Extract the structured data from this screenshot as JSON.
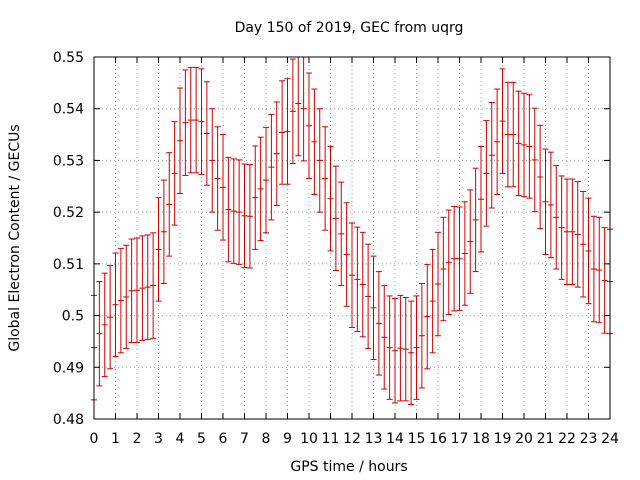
{
  "chart_data": {
    "type": "errorbar",
    "title": "Day 150 of 2019, GEC from uqrg",
    "xlabel": "GPS time / hours",
    "ylabel": "Global Electron Content / GECUs",
    "xlim": [
      0,
      24
    ],
    "ylim": [
      0.48,
      0.55
    ],
    "grid": true,
    "x_ticks": [
      0,
      1,
      2,
      3,
      4,
      5,
      6,
      7,
      8,
      9,
      10,
      11,
      12,
      13,
      14,
      15,
      16,
      17,
      18,
      19,
      20,
      21,
      22,
      23,
      24
    ],
    "x_tick_labels": [
      "0",
      "1",
      "2",
      "3",
      "4",
      "5",
      "6",
      "7",
      "8",
      "9",
      "10",
      "11",
      "12",
      "13",
      "14",
      "15",
      "16",
      "17",
      "18",
      "19",
      "20",
      "21",
      "22",
      "23",
      "24"
    ],
    "y_ticks": [
      0.48,
      0.49,
      0.5,
      0.51,
      0.52,
      0.53,
      0.54,
      0.55
    ],
    "y_tick_labels": [
      "0.48",
      "0.49",
      "0.5",
      "0.51",
      "0.52",
      "0.53",
      "0.54",
      "0.55"
    ],
    "series": [
      {
        "name": "GEC",
        "color": "#cc0000",
        "x": [
          0,
          0.25,
          0.5,
          0.75,
          1,
          1.25,
          1.5,
          1.75,
          2,
          2.25,
          2.5,
          2.75,
          3,
          3.25,
          3.5,
          3.75,
          4,
          4.25,
          4.5,
          4.75,
          5,
          5.25,
          5.5,
          5.75,
          6,
          6.25,
          6.5,
          6.75,
          7,
          7.25,
          7.5,
          7.75,
          8,
          8.25,
          8.5,
          8.75,
          9,
          9.25,
          9.5,
          9.75,
          10,
          10.25,
          10.5,
          10.75,
          11,
          11.25,
          11.5,
          11.75,
          12,
          12.25,
          12.5,
          12.75,
          13,
          13.25,
          13.5,
          13.75,
          14,
          14.25,
          14.5,
          14.75,
          15,
          15.25,
          15.5,
          15.75,
          16,
          16.25,
          16.5,
          16.75,
          17,
          17.25,
          17.5,
          17.75,
          18,
          18.25,
          18.5,
          18.75,
          19,
          19.25,
          19.5,
          19.75,
          20,
          20.25,
          20.5,
          20.75,
          21,
          21.25,
          21.5,
          21.75,
          22,
          22.25,
          22.5,
          22.75,
          23,
          23.25,
          23.5,
          23.75,
          24
        ],
        "y": [
          0.4938,
          0.4965,
          0.4982,
          0.4997,
          0.5021,
          0.5029,
          0.5036,
          0.5048,
          0.5049,
          0.5053,
          0.5055,
          0.5058,
          0.5128,
          0.5162,
          0.5215,
          0.5275,
          0.5338,
          0.5373,
          0.5378,
          0.5378,
          0.5375,
          0.5352,
          0.53,
          0.5265,
          0.5248,
          0.5205,
          0.5202,
          0.52,
          0.5193,
          0.5192,
          0.5228,
          0.5245,
          0.5262,
          0.5287,
          0.5313,
          0.5354,
          0.5356,
          0.5395,
          0.541,
          0.54,
          0.5367,
          0.5336,
          0.53,
          0.5265,
          0.5226,
          0.5188,
          0.5158,
          0.5118,
          0.5078,
          0.507,
          0.506,
          0.5037,
          0.5015,
          0.4985,
          0.4958,
          0.4938,
          0.4932,
          0.4937,
          0.4935,
          0.4928,
          0.4938,
          0.4961,
          0.4998,
          0.5028,
          0.5061,
          0.509,
          0.5103,
          0.511,
          0.511,
          0.512,
          0.5143,
          0.5185,
          0.5225,
          0.5275,
          0.531,
          0.5336,
          0.5376,
          0.535,
          0.535,
          0.5333,
          0.533,
          0.5327,
          0.5301,
          0.5268,
          0.522,
          0.5214,
          0.519,
          0.517,
          0.5162,
          0.5162,
          0.5157,
          0.5138,
          0.5125,
          0.509,
          0.5088,
          0.5068,
          0.5066
        ],
        "error": [
          0.0101,
          0.0101,
          0.01,
          0.01,
          0.01,
          0.0101,
          0.01,
          0.01,
          0.0101,
          0.0101,
          0.0101,
          0.0102,
          0.01,
          0.01,
          0.01,
          0.01,
          0.0102,
          0.0102,
          0.0102,
          0.0102,
          0.0102,
          0.01,
          0.01,
          0.01,
          0.0102,
          0.0101,
          0.0101,
          0.0101,
          0.01,
          0.01,
          0.01,
          0.01,
          0.0102,
          0.0102,
          0.01,
          0.01,
          0.0102,
          0.0101,
          0.0101,
          0.0101,
          0.0102,
          0.0102,
          0.01,
          0.01,
          0.0101,
          0.0101,
          0.01,
          0.01,
          0.0101,
          0.0101,
          0.0101,
          0.0101,
          0.01,
          0.01,
          0.01,
          0.01,
          0.0101,
          0.0102,
          0.01,
          0.01,
          0.01,
          0.0101,
          0.0101,
          0.01,
          0.01,
          0.01,
          0.0101,
          0.0101,
          0.01,
          0.01,
          0.01,
          0.01,
          0.0102,
          0.0102,
          0.0102,
          0.0102,
          0.0101,
          0.0101,
          0.0101,
          0.0101,
          0.01,
          0.01,
          0.01,
          0.01,
          0.0102,
          0.0102,
          0.01,
          0.01,
          0.0102,
          0.0102,
          0.0102,
          0.0102,
          0.0102,
          0.0102,
          0.0102,
          0.0102,
          0.0101
        ]
      }
    ]
  }
}
